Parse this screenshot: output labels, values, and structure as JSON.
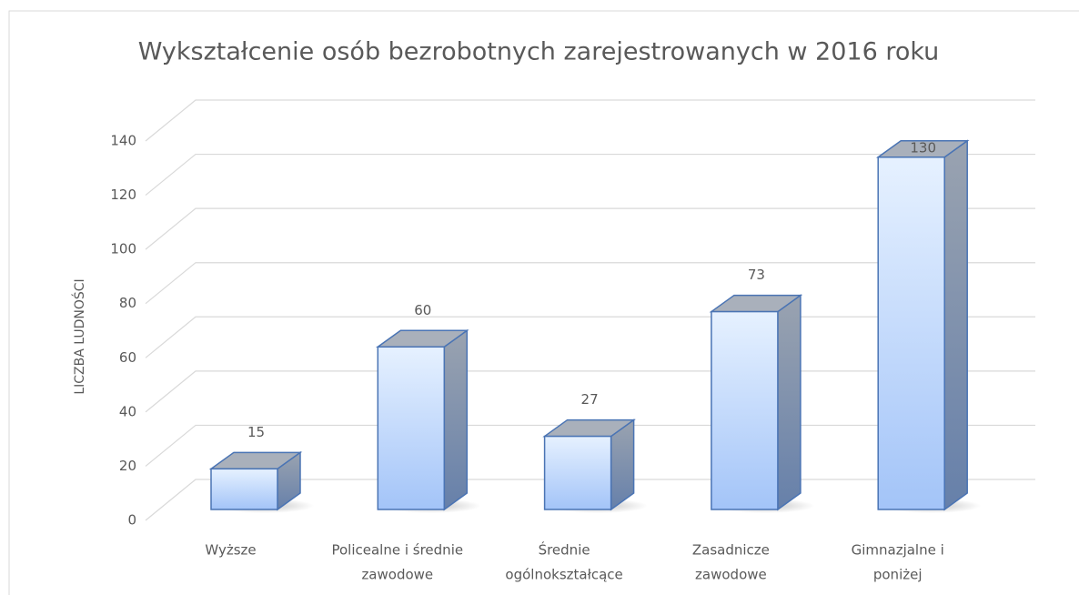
{
  "chart_data": {
    "type": "bar3d",
    "title": "Wykształcenie osób bezrobotnych zarejestrowanych w 2016 roku",
    "y_label": "LICZBA LUDNOŚCI",
    "categories": [
      [
        "Wyższe"
      ],
      [
        "Policealne i średnie",
        "zawodowe"
      ],
      [
        "Średnie",
        "ogólnokształcące"
      ],
      [
        "Zasadnicze",
        "zawodowe"
      ],
      [
        "Gimnazjalne i",
        "poniżej"
      ]
    ],
    "values": [
      15,
      60,
      27,
      73,
      130
    ],
    "color": "#a7c8fa",
    "ylim": [
      0,
      140
    ],
    "yticks": [
      0,
      20,
      40,
      60,
      80,
      100,
      120,
      140
    ],
    "grid": true
  }
}
